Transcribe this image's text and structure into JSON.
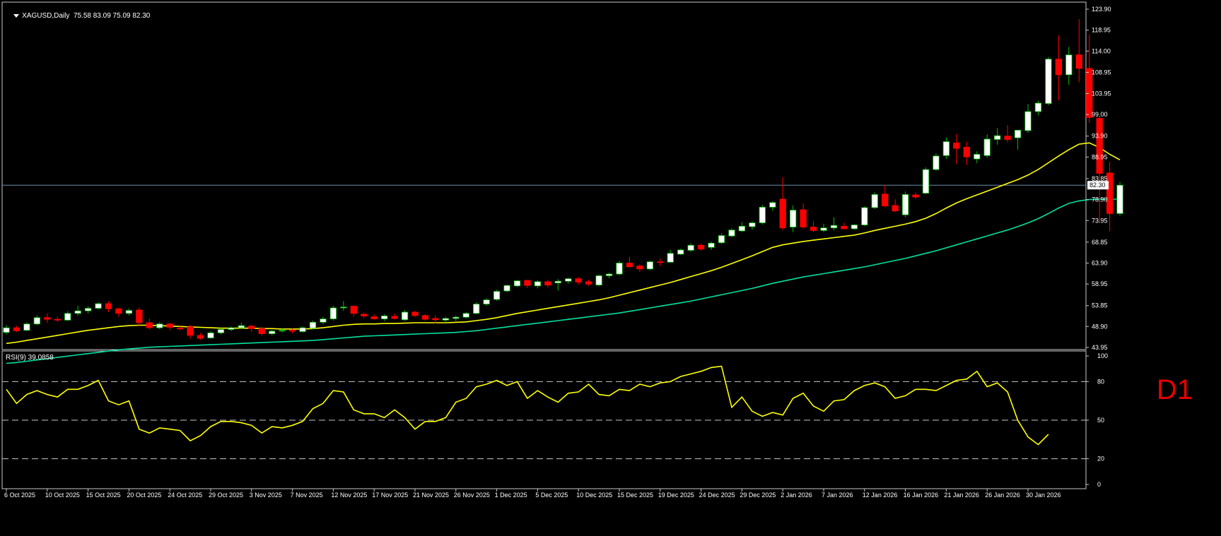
{
  "header": {
    "symbol_tf": "XAGUSD,Daily",
    "ohlc": "75.58 83.09 75.09 82.30"
  },
  "indicator_header": {
    "label": "RSI(9) 39.0858"
  },
  "timeframe_badge": "D1",
  "colors": {
    "background": "#000000",
    "bull_body": "#ffffff",
    "bear_body": "#ff0000",
    "bull_wick": "#00c000",
    "bear_wick": "#ff0000",
    "ma_fast": "#ffff00",
    "ma_slow": "#00e0a0",
    "rsi_line": "#ffff00",
    "current_price_line": "#6c8ca8"
  },
  "chart_data": [
    {
      "type": "candlestick",
      "symbol": "XAGUSD",
      "timeframe": "Daily",
      "price_axis_ticks": [
        "123.90",
        "118.95",
        "114.00",
        "108.95",
        "103.95",
        "99.00",
        "93.90",
        "88.95",
        "83.85",
        "78.90",
        "73.95",
        "68.85",
        "63.90",
        "58.95",
        "53.85",
        "48.90",
        "43.95"
      ],
      "ylim": [
        43.95,
        123.9
      ],
      "current_price": "82.30",
      "date_ticks": [
        {
          "label": "6 Oct 2025",
          "index": 0
        },
        {
          "label": "10 Oct 2025",
          "index": 4
        },
        {
          "label": "15 Oct 2025",
          "index": 8
        },
        {
          "label": "20 Oct 2025",
          "index": 12
        },
        {
          "label": "24 Oct 2025",
          "index": 16
        },
        {
          "label": "29 Oct 2025",
          "index": 20
        },
        {
          "label": "3 Nov 2025",
          "index": 24
        },
        {
          "label": "7 Nov 2025",
          "index": 28
        },
        {
          "label": "12 Nov 2025",
          "index": 32
        },
        {
          "label": "17 Nov 2025",
          "index": 36
        },
        {
          "label": "21 Nov 2025",
          "index": 40
        },
        {
          "label": "26 Nov 2025",
          "index": 44
        },
        {
          "label": "1 Dec 2025",
          "index": 48
        },
        {
          "label": "5 Dec 2025",
          "index": 52
        },
        {
          "label": "10 Dec 2025",
          "index": 56
        },
        {
          "label": "15 Dec 2025",
          "index": 60
        },
        {
          "label": "19 Dec 2025",
          "index": 64
        },
        {
          "label": "24 Dec 2025",
          "index": 68
        },
        {
          "label": "29 Dec 2025",
          "index": 72
        },
        {
          "label": "2 Jan 2026",
          "index": 76
        },
        {
          "label": "7 Jan 2026",
          "index": 80
        },
        {
          "label": "12 Jan 2026",
          "index": 84
        },
        {
          "label": "16 Jan 2026",
          "index": 88
        },
        {
          "label": "21 Jan 2026",
          "index": 92
        },
        {
          "label": "26 Jan 2026",
          "index": 96
        },
        {
          "label": "30 Jan 2026",
          "index": 100
        }
      ],
      "candles": [
        [
          47.5,
          49.2,
          47.0,
          48.6
        ],
        [
          48.6,
          49.1,
          47.6,
          47.9
        ],
        [
          48.0,
          49.9,
          47.8,
          49.5
        ],
        [
          49.5,
          51.5,
          49.2,
          51.0
        ],
        [
          51.0,
          52.0,
          49.8,
          50.6
        ],
        [
          50.6,
          51.2,
          50.0,
          50.4
        ],
        [
          50.4,
          52.5,
          50.2,
          52.0
        ],
        [
          52.0,
          53.8,
          51.5,
          52.6
        ],
        [
          52.6,
          53.7,
          52.0,
          53.2
        ],
        [
          53.2,
          54.6,
          52.9,
          54.3
        ],
        [
          54.3,
          54.9,
          52.3,
          53.1
        ],
        [
          53.1,
          53.3,
          51.2,
          52.0
        ],
        [
          52.0,
          53.2,
          51.5,
          52.7
        ],
        [
          52.8,
          53.4,
          48.8,
          49.8
        ],
        [
          49.8,
          50.8,
          48.2,
          48.6
        ],
        [
          48.6,
          49.9,
          48.3,
          49.5
        ],
        [
          49.5,
          49.8,
          48.0,
          48.7
        ],
        [
          48.5,
          49.2,
          48.0,
          48.4
        ],
        [
          48.8,
          49.3,
          46.0,
          46.8
        ],
        [
          46.8,
          47.4,
          45.8,
          46.1
        ],
        [
          46.2,
          47.8,
          46.0,
          47.4
        ],
        [
          47.4,
          48.6,
          47.0,
          48.2
        ],
        [
          48.2,
          48.9,
          47.8,
          48.6
        ],
        [
          48.6,
          49.8,
          48.3,
          49.1
        ],
        [
          49.0,
          49.3,
          47.6,
          48.4
        ],
        [
          48.4,
          48.8,
          46.8,
          47.2
        ],
        [
          47.2,
          48.1,
          46.8,
          47.8
        ],
        [
          47.9,
          48.5,
          47.5,
          48.0
        ],
        [
          48.0,
          48.4,
          47.3,
          47.8
        ],
        [
          47.7,
          48.9,
          47.5,
          48.6
        ],
        [
          48.5,
          50.3,
          48.3,
          49.9
        ],
        [
          49.9,
          51.2,
          49.4,
          50.7
        ],
        [
          50.7,
          53.8,
          50.3,
          53.3
        ],
        [
          53.3,
          54.9,
          52.6,
          53.5
        ],
        [
          53.7,
          53.9,
          51.2,
          52.0
        ],
        [
          51.8,
          52.2,
          50.9,
          51.4
        ],
        [
          51.2,
          51.8,
          50.5,
          50.7
        ],
        [
          50.7,
          51.8,
          50.2,
          51.4
        ],
        [
          51.3,
          52.0,
          50.6,
          50.8
        ],
        [
          50.5,
          52.8,
          50.2,
          52.3
        ],
        [
          52.3,
          52.6,
          51.1,
          51.5
        ],
        [
          51.5,
          51.8,
          50.3,
          50.6
        ],
        [
          50.8,
          51.5,
          49.6,
          50.5
        ],
        [
          50.4,
          51.2,
          49.8,
          50.8
        ],
        [
          50.8,
          51.5,
          50.2,
          51.1
        ],
        [
          51.1,
          52.3,
          50.8,
          52.0
        ],
        [
          52.0,
          54.6,
          51.8,
          54.2
        ],
        [
          54.2,
          55.6,
          53.8,
          55.2
        ],
        [
          55.3,
          57.6,
          55.0,
          57.2
        ],
        [
          57.3,
          58.8,
          57.0,
          58.6
        ],
        [
          58.5,
          59.9,
          58.2,
          59.7
        ],
        [
          59.8,
          59.9,
          58.0,
          58.6
        ],
        [
          58.5,
          59.8,
          57.9,
          59.5
        ],
        [
          59.5,
          59.9,
          58.1,
          58.7
        ],
        [
          59.2,
          60.1,
          57.4,
          59.6
        ],
        [
          59.6,
          60.5,
          59.0,
          60.2
        ],
        [
          60.2,
          60.6,
          58.8,
          59.4
        ],
        [
          59.5,
          60.0,
          58.5,
          58.9
        ],
        [
          58.7,
          61.2,
          58.4,
          60.9
        ],
        [
          60.9,
          61.6,
          60.3,
          61.3
        ],
        [
          61.3,
          64.4,
          61.0,
          63.9
        ],
        [
          63.9,
          65.4,
          62.8,
          63.0
        ],
        [
          63.2,
          63.6,
          61.8,
          62.5
        ],
        [
          62.5,
          64.5,
          62.2,
          64.2
        ],
        [
          64.2,
          65.0,
          63.2,
          64.1
        ],
        [
          64.1,
          67.0,
          63.9,
          66.2
        ],
        [
          66.0,
          67.3,
          65.8,
          67.0
        ],
        [
          66.9,
          68.6,
          66.5,
          68.1
        ],
        [
          68.1,
          68.5,
          66.8,
          67.2
        ],
        [
          67.6,
          69.0,
          67.0,
          68.6
        ],
        [
          68.7,
          70.9,
          68.4,
          70.4
        ],
        [
          70.3,
          72.1,
          70.0,
          71.7
        ],
        [
          71.5,
          73.6,
          71.2,
          72.6
        ],
        [
          72.5,
          73.8,
          71.8,
          73.4
        ],
        [
          73.4,
          77.6,
          73.0,
          77.1
        ],
        [
          77.1,
          78.5,
          76.3,
          78.2
        ],
        [
          79.0,
          84.2,
          71.7,
          72.2
        ],
        [
          72.4,
          77.5,
          71.2,
          76.4
        ],
        [
          76.5,
          78.0,
          72.0,
          72.4
        ],
        [
          72.4,
          73.8,
          71.2,
          71.6
        ],
        [
          71.6,
          73.2,
          71.2,
          72.2
        ],
        [
          72.2,
          74.7,
          71.6,
          72.8
        ],
        [
          72.6,
          73.4,
          71.9,
          72.0
        ],
        [
          72.0,
          73.1,
          71.8,
          72.9
        ],
        [
          72.9,
          77.3,
          72.6,
          77.0
        ],
        [
          77.0,
          80.6,
          76.7,
          80.1
        ],
        [
          80.2,
          82.3,
          77.1,
          77.4
        ],
        [
          77.5,
          79.0,
          75.9,
          76.2
        ],
        [
          75.3,
          80.8,
          74.7,
          80.1
        ],
        [
          80.0,
          80.6,
          79.1,
          79.5
        ],
        [
          80.4,
          86.5,
          80.2,
          86.0
        ],
        [
          86.0,
          89.8,
          85.7,
          89.2
        ],
        [
          89.3,
          93.6,
          88.5,
          92.6
        ],
        [
          92.3,
          94.4,
          87.3,
          91.0
        ],
        [
          91.3,
          92.6,
          87.1,
          89.0
        ],
        [
          88.5,
          90.3,
          87.5,
          89.6
        ],
        [
          89.3,
          94.3,
          88.8,
          93.2
        ],
        [
          93.1,
          95.8,
          91.9,
          94.0
        ],
        [
          93.9,
          96.5,
          92.4,
          93.1
        ],
        [
          93.5,
          95.2,
          90.7,
          95.3
        ],
        [
          95.2,
          101.5,
          94.7,
          99.7
        ],
        [
          99.7,
          102.3,
          98.8,
          101.7
        ],
        [
          101.6,
          112.6,
          101.2,
          112.1
        ],
        [
          112.1,
          117.7,
          102.3,
          108.4
        ],
        [
          108.4,
          115.0,
          106.0,
          113.1
        ],
        [
          113.1,
          121.6,
          106.6,
          109.9
        ],
        [
          109.9,
          117.9,
          97.0,
          98.3
        ],
        [
          98.1,
          98.5,
          73.5,
          85.1
        ],
        [
          85.2,
          87.8,
          71.4,
          75.6
        ],
        [
          75.6,
          83.1,
          75.1,
          82.3
        ]
      ],
      "ma_fast": [
        44.9,
        45.2,
        45.6,
        46.0,
        46.4,
        46.8,
        47.2,
        47.6,
        48.0,
        48.3,
        48.6,
        48.9,
        49.1,
        49.2,
        49.2,
        49.1,
        49.0,
        48.9,
        48.8,
        48.7,
        48.6,
        48.5,
        48.5,
        48.5,
        48.5,
        48.4,
        48.4,
        48.3,
        48.3,
        48.3,
        48.4,
        48.6,
        48.9,
        49.2,
        49.4,
        49.5,
        49.5,
        49.6,
        49.6,
        49.7,
        49.8,
        49.8,
        49.8,
        49.8,
        49.9,
        50.0,
        50.3,
        50.6,
        51.0,
        51.5,
        52.0,
        52.4,
        52.8,
        53.2,
        53.6,
        54.0,
        54.4,
        54.8,
        55.2,
        55.7,
        56.3,
        56.9,
        57.5,
        58.1,
        58.7,
        59.3,
        60.0,
        60.7,
        61.4,
        62.1,
        62.9,
        63.8,
        64.7,
        65.6,
        66.6,
        67.6,
        68.2,
        68.6,
        69.0,
        69.3,
        69.6,
        69.9,
        70.2,
        70.5,
        71.0,
        71.6,
        72.1,
        72.6,
        73.1,
        73.7,
        74.5,
        75.6,
        76.9,
        78.1,
        79.1,
        80.0,
        80.9,
        81.8,
        82.7,
        83.6,
        84.7,
        86.0,
        87.6,
        89.2,
        90.7,
        92.0,
        92.3,
        91.2,
        89.6,
        88.3
      ],
      "ma_slow": [
        40.2,
        40.4,
        40.7,
        41.0,
        41.3,
        41.6,
        41.9,
        42.2,
        42.5,
        42.8,
        43.1,
        43.4,
        43.6,
        43.8,
        44.0,
        44.1,
        44.2,
        44.3,
        44.4,
        44.5,
        44.6,
        44.7,
        44.8,
        44.9,
        45.0,
        45.1,
        45.2,
        45.3,
        45.4,
        45.5,
        45.6,
        45.8,
        46.0,
        46.2,
        46.4,
        46.6,
        46.7,
        46.8,
        46.9,
        47.0,
        47.1,
        47.2,
        47.3,
        47.4,
        47.5,
        47.7,
        47.9,
        48.2,
        48.5,
        48.8,
        49.1,
        49.4,
        49.7,
        50.0,
        50.3,
        50.6,
        50.9,
        51.2,
        51.5,
        51.8,
        52.1,
        52.5,
        52.9,
        53.3,
        53.7,
        54.1,
        54.5,
        54.9,
        55.4,
        55.9,
        56.4,
        56.9,
        57.4,
        57.9,
        58.5,
        59.1,
        59.6,
        60.1,
        60.6,
        61.0,
        61.4,
        61.8,
        62.2,
        62.6,
        63.0,
        63.5,
        64.0,
        64.5,
        65.0,
        65.6,
        66.2,
        66.8,
        67.5,
        68.2,
        68.9,
        69.6,
        70.3,
        71.0,
        71.7,
        72.5,
        73.4,
        74.4,
        75.6,
        76.9,
        78.0,
        78.6,
        78.9,
        79.0,
        79.0,
        79.0
      ]
    },
    {
      "type": "line",
      "name": "RSI(9)",
      "last_value": "39.0858",
      "ylim": [
        0,
        100
      ],
      "levels": [
        20,
        50,
        80
      ],
      "axis_ticks": [
        "100",
        "80",
        "50",
        "20",
        "0"
      ],
      "values": [
        74,
        63,
        70,
        73,
        70,
        68,
        74,
        74,
        77,
        81,
        65,
        62,
        65,
        43,
        40,
        44,
        43,
        42,
        34,
        38,
        45,
        49,
        49,
        48,
        46,
        40,
        45,
        44,
        46,
        49,
        59,
        63,
        73,
        72,
        58,
        55,
        55,
        52,
        58,
        52,
        43,
        49,
        49,
        52,
        64,
        67,
        76,
        78,
        81,
        77,
        80,
        67,
        73,
        68,
        64,
        71,
        72,
        78,
        70,
        69,
        74,
        73,
        78,
        76,
        79,
        80,
        84,
        86,
        88,
        91,
        92,
        60,
        68,
        57,
        53,
        56,
        54,
        67,
        71,
        61,
        57,
        65,
        66,
        73,
        77,
        79,
        76,
        67,
        69,
        74,
        74,
        73,
        77,
        81,
        82,
        88,
        76,
        79,
        72,
        50,
        37,
        31,
        39
      ]
    }
  ]
}
